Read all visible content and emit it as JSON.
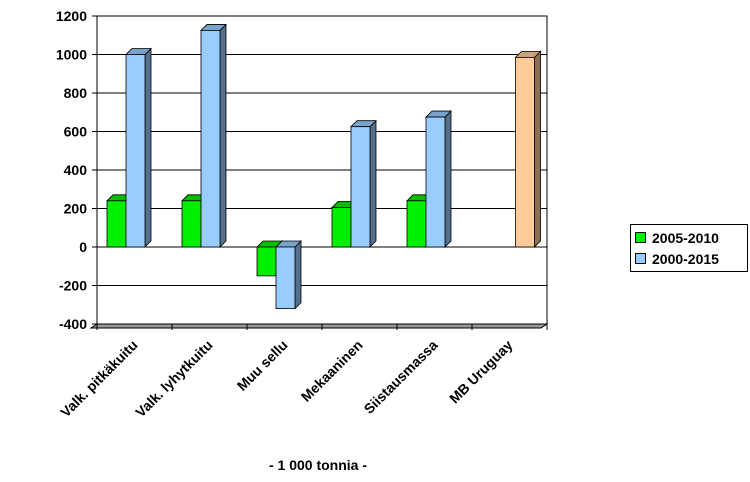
{
  "chart_data": {
    "type": "bar",
    "categories": [
      "Valk. pitkäkuitu",
      "Valk. lyhytkuitu",
      "Muu sellu",
      "Mekaaninen",
      "Siistausmassa",
      "MB Uruguay"
    ],
    "series": [
      {
        "name": "2005-2010",
        "values": [
          240,
          240,
          -150,
          205,
          240,
          null
        ],
        "color": "#00ee00"
      },
      {
        "name": "2000-2015",
        "values": [
          1000,
          1125,
          -320,
          625,
          675,
          null
        ],
        "color": "#99ccff"
      },
      {
        "name": "",
        "values": [
          null,
          null,
          null,
          null,
          null,
          985
        ],
        "color": "#ffcc99"
      }
    ],
    "xlabel": "- 1 000 tonnia -",
    "ylabel": "",
    "ylim": [
      -400,
      1200
    ],
    "yticks": [
      -400,
      -200,
      0,
      200,
      400,
      600,
      800,
      1000,
      1200
    ],
    "grid": true,
    "legend_position": "right",
    "style": "3d-columns"
  }
}
